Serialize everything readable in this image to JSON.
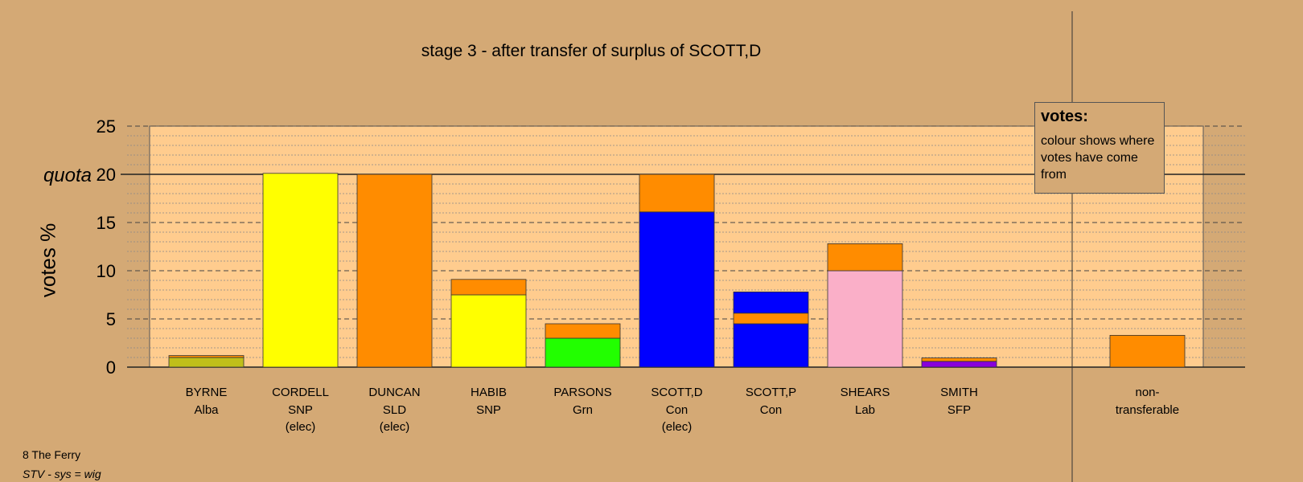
{
  "title": "stage 3 - after transfer of surplus of SCOTT,D",
  "legend": {
    "title": "votes:",
    "text": "colour shows where votes have come from"
  },
  "footer": {
    "ward": "8 The Ferry",
    "system": "STV - sys = wig"
  },
  "chart_data": {
    "type": "bar",
    "stacked": true,
    "ylabel": "votes %",
    "ylim": [
      0,
      25
    ],
    "yticks": [
      0,
      5,
      10,
      15,
      20,
      25
    ],
    "quota": 20,
    "quota_label": "quota",
    "grid": true,
    "candidates": [
      {
        "name": "BYRNE",
        "party": "Alba",
        "status": "",
        "segments": [
          {
            "value": 1.0,
            "color": "#BFBF1A"
          },
          {
            "value": 0.2,
            "color": "#FF8C00"
          }
        ]
      },
      {
        "name": "CORDELL",
        "party": "SNP",
        "status": "(elec)",
        "segments": [
          {
            "value": 20.1,
            "color": "#FFFF00"
          }
        ]
      },
      {
        "name": "DUNCAN",
        "party": "SLD",
        "status": "(elec)",
        "segments": [
          {
            "value": 20.0,
            "color": "#FF8C00"
          }
        ]
      },
      {
        "name": "HABIB",
        "party": "SNP",
        "status": "",
        "segments": [
          {
            "value": 7.5,
            "color": "#FFFF00"
          },
          {
            "value": 1.6,
            "color": "#FF8C00"
          }
        ]
      },
      {
        "name": "PARSONS",
        "party": "Grn",
        "status": "",
        "segments": [
          {
            "value": 3.0,
            "color": "#22FF00"
          },
          {
            "value": 1.5,
            "color": "#FF8C00"
          }
        ]
      },
      {
        "name": "SCOTT,D",
        "party": "Con",
        "status": "(elec)",
        "segments": [
          {
            "value": 16.1,
            "color": "#0000FF"
          },
          {
            "value": 3.9,
            "color": "#FF8C00"
          }
        ]
      },
      {
        "name": "SCOTT,P",
        "party": "Con",
        "status": "",
        "segments": [
          {
            "value": 4.5,
            "color": "#0000FF"
          },
          {
            "value": 1.1,
            "color": "#FF8C00"
          },
          {
            "value": 2.2,
            "color": "#0000FF"
          }
        ]
      },
      {
        "name": "SHEARS",
        "party": "Lab",
        "status": "",
        "segments": [
          {
            "value": 10.0,
            "color": "#FAAFC8"
          },
          {
            "value": 2.8,
            "color": "#FF8C00"
          }
        ]
      },
      {
        "name": "SMITH",
        "party": "SFP",
        "status": "",
        "segments": [
          {
            "value": 0.6,
            "color": "#8800DD"
          },
          {
            "value": 0.35,
            "color": "#FF8C00"
          }
        ]
      }
    ],
    "nontransferable": {
      "label_line1": "non-",
      "label_line2": "transferable",
      "segments": [
        {
          "value": 3.3,
          "color": "#FF8C00"
        }
      ]
    }
  }
}
